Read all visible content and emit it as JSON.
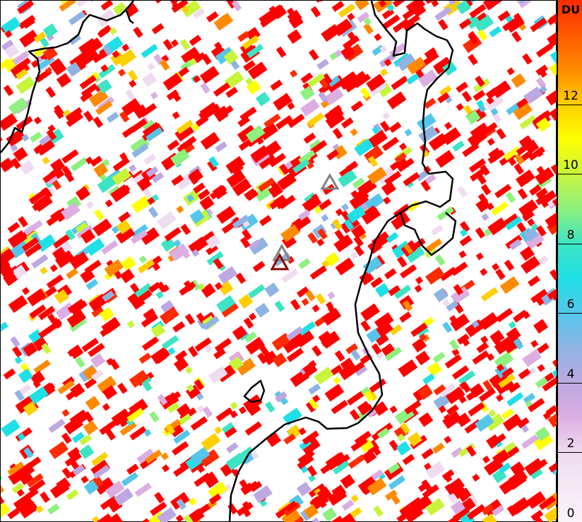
{
  "colorbar": {
    "unit_label": "DU",
    "ticks": [
      "0",
      "2",
      "4",
      "6",
      "8",
      "10",
      "12"
    ],
    "range": [
      0,
      15
    ],
    "colors": [
      {
        "value": 0,
        "color": "#faf4fa"
      },
      {
        "value": 2,
        "color": "#efdcf0"
      },
      {
        "value": 3,
        "color": "#dcaee2"
      },
      {
        "value": 4,
        "color": "#bda8e2"
      },
      {
        "value": 5,
        "color": "#8fb4e4"
      },
      {
        "value": 6,
        "color": "#55c6ea"
      },
      {
        "value": 7,
        "color": "#1fe0e6"
      },
      {
        "value": 8,
        "color": "#3ce4c4"
      },
      {
        "value": 9,
        "color": "#8ef07e"
      },
      {
        "value": 10,
        "color": "#c8f43c"
      },
      {
        "value": 11,
        "color": "#ffff00"
      },
      {
        "value": 12,
        "color": "#ffd000"
      },
      {
        "value": 13,
        "color": "#ff8a00"
      },
      {
        "value": 15,
        "color": "#ff2a00"
      }
    ]
  },
  "map": {
    "dominant_pixel_color": "#ff0000",
    "coastline_color": "#000000",
    "markers": [
      {
        "name": "volcano-marker",
        "color": "#808080"
      },
      {
        "name": "volcano-marker",
        "color": "#808080"
      },
      {
        "name": "volcano-marker",
        "color": "#8b0000"
      }
    ]
  }
}
